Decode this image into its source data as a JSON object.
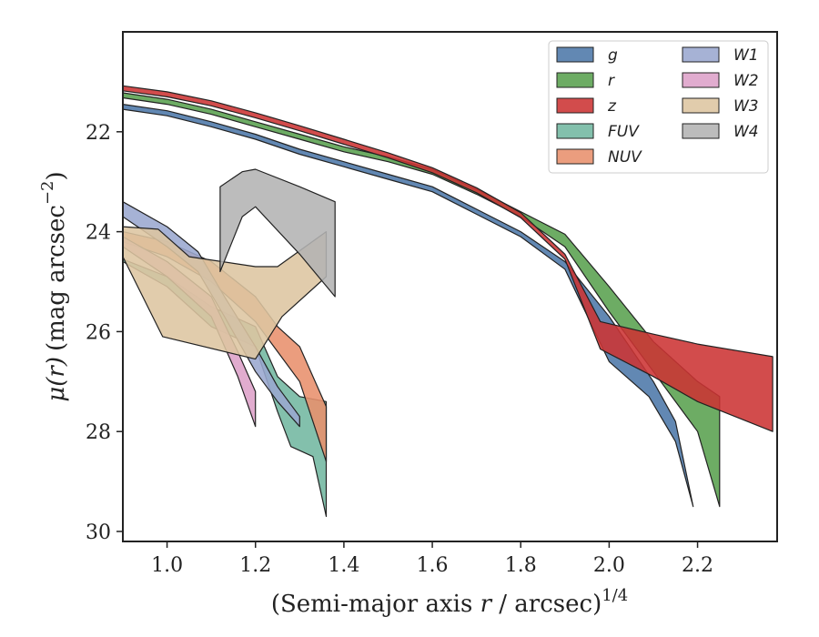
{
  "chart_data": {
    "type": "area",
    "xlabel": "(Semi-major axis r / arcsec)",
    "xlabel_main": "(Semi-major axis ",
    "xlabel_var": "r",
    "xlabel_tail": " / arcsec)",
    "xlabel_sup": "1/4",
    "ylabel_main": "(mag arcsec",
    "ylabel_sup": "−2",
    "ylabel_end": ")",
    "ylabel_var": "μ(r)",
    "xlim": [
      0.9,
      2.38
    ],
    "ylim": [
      30.2,
      20.0
    ],
    "y_inverted": true,
    "x_ticks": [
      1.0,
      1.2,
      1.4,
      1.6,
      1.8,
      2.0,
      2.2
    ],
    "x_tick_labels": [
      "1.0",
      "1.2",
      "1.4",
      "1.6",
      "1.8",
      "2.0",
      "2.2"
    ],
    "y_ticks": [
      22,
      24,
      26,
      28,
      30
    ],
    "y_tick_labels": [
      "22",
      "24",
      "26",
      "28",
      "30"
    ],
    "legend_position": "top-right",
    "legend_columns": 2,
    "series": [
      {
        "name": "g",
        "color": "#4c78a8",
        "upper": [
          [
            0.9,
            21.45
          ],
          [
            1.0,
            21.58
          ],
          [
            1.1,
            21.8
          ],
          [
            1.2,
            22.05
          ],
          [
            1.3,
            22.35
          ],
          [
            1.4,
            22.6
          ],
          [
            1.5,
            22.85
          ],
          [
            1.6,
            23.1
          ],
          [
            1.7,
            23.55
          ],
          [
            1.8,
            24.0
          ],
          [
            1.9,
            24.6
          ],
          [
            2.0,
            25.7
          ],
          [
            2.1,
            27.0
          ],
          [
            2.15,
            27.8
          ],
          [
            2.19,
            29.5
          ]
        ],
        "lower": [
          [
            0.9,
            21.55
          ],
          [
            1.0,
            21.68
          ],
          [
            1.1,
            21.9
          ],
          [
            1.2,
            22.15
          ],
          [
            1.3,
            22.45
          ],
          [
            1.4,
            22.7
          ],
          [
            1.5,
            22.95
          ],
          [
            1.6,
            23.2
          ],
          [
            1.7,
            23.65
          ],
          [
            1.8,
            24.1
          ],
          [
            1.9,
            24.75
          ],
          [
            2.0,
            26.6
          ],
          [
            2.09,
            27.3
          ],
          [
            2.15,
            28.2
          ],
          [
            2.19,
            29.5
          ]
        ]
      },
      {
        "name": "r",
        "color": "#59a14f",
        "upper": [
          [
            0.9,
            21.22
          ],
          [
            1.0,
            21.35
          ],
          [
            1.1,
            21.55
          ],
          [
            1.2,
            21.8
          ],
          [
            1.3,
            22.05
          ],
          [
            1.4,
            22.3
          ],
          [
            1.5,
            22.5
          ],
          [
            1.6,
            22.75
          ],
          [
            1.7,
            23.15
          ],
          [
            1.8,
            23.6
          ],
          [
            1.9,
            24.05
          ],
          [
            2.0,
            25.1
          ],
          [
            2.1,
            26.2
          ],
          [
            2.2,
            27.0
          ],
          [
            2.25,
            27.3
          ]
        ],
        "lower": [
          [
            0.9,
            21.32
          ],
          [
            1.0,
            21.45
          ],
          [
            1.1,
            21.65
          ],
          [
            1.2,
            21.9
          ],
          [
            1.3,
            22.15
          ],
          [
            1.4,
            22.4
          ],
          [
            1.5,
            22.6
          ],
          [
            1.6,
            22.85
          ],
          [
            1.7,
            23.25
          ],
          [
            1.8,
            23.7
          ],
          [
            1.9,
            24.3
          ],
          [
            2.0,
            25.6
          ],
          [
            2.1,
            26.8
          ],
          [
            2.2,
            28.0
          ],
          [
            2.25,
            29.5
          ]
        ]
      },
      {
        "name": "z",
        "color": "#cc3333",
        "upper": [
          [
            0.9,
            21.08
          ],
          [
            1.0,
            21.2
          ],
          [
            1.1,
            21.38
          ],
          [
            1.2,
            21.62
          ],
          [
            1.3,
            21.88
          ],
          [
            1.4,
            22.15
          ],
          [
            1.5,
            22.42
          ],
          [
            1.6,
            22.72
          ],
          [
            1.7,
            23.12
          ],
          [
            1.8,
            23.62
          ],
          [
            1.9,
            24.45
          ],
          [
            1.98,
            25.8
          ],
          [
            2.1,
            26.05
          ],
          [
            2.2,
            26.25
          ],
          [
            2.37,
            26.5
          ]
        ],
        "lower": [
          [
            0.9,
            21.18
          ],
          [
            1.0,
            21.3
          ],
          [
            1.1,
            21.48
          ],
          [
            1.2,
            21.72
          ],
          [
            1.3,
            21.98
          ],
          [
            1.4,
            22.25
          ],
          [
            1.5,
            22.52
          ],
          [
            1.6,
            22.82
          ],
          [
            1.7,
            23.22
          ],
          [
            1.8,
            23.72
          ],
          [
            1.9,
            24.55
          ],
          [
            1.98,
            26.35
          ],
          [
            2.1,
            26.9
          ],
          [
            2.2,
            27.4
          ],
          [
            2.37,
            28.0
          ]
        ]
      },
      {
        "name": "FUV",
        "color": "#72b7a1",
        "upper": [
          [
            0.9,
            24.55
          ],
          [
            1.0,
            24.9
          ],
          [
            1.1,
            25.5
          ],
          [
            1.2,
            25.9
          ],
          [
            1.25,
            26.9
          ],
          [
            1.3,
            27.3
          ],
          [
            1.36,
            27.4
          ]
        ],
        "lower": [
          [
            0.9,
            24.6
          ],
          [
            1.0,
            25.1
          ],
          [
            1.1,
            25.9
          ],
          [
            1.2,
            26.3
          ],
          [
            1.25,
            27.6
          ],
          [
            1.28,
            28.3
          ],
          [
            1.33,
            28.5
          ],
          [
            1.36,
            29.7
          ]
        ]
      },
      {
        "name": "NUV",
        "color": "#e8906c",
        "upper": [
          [
            0.9,
            24.0
          ],
          [
            1.0,
            24.2
          ],
          [
            1.1,
            24.6
          ],
          [
            1.2,
            25.3
          ],
          [
            1.25,
            25.9
          ],
          [
            1.3,
            26.3
          ],
          [
            1.36,
            27.5
          ]
        ],
        "lower": [
          [
            0.9,
            24.2
          ],
          [
            1.0,
            24.5
          ],
          [
            1.1,
            25.0
          ],
          [
            1.2,
            25.8
          ],
          [
            1.25,
            26.4
          ],
          [
            1.3,
            27.0
          ],
          [
            1.36,
            28.6
          ]
        ]
      },
      {
        "name": "W1",
        "color": "#9aa7cf",
        "upper": [
          [
            0.9,
            23.4
          ],
          [
            1.0,
            23.9
          ],
          [
            1.07,
            24.4
          ],
          [
            1.13,
            25.3
          ],
          [
            1.2,
            26.3
          ],
          [
            1.25,
            27.1
          ],
          [
            1.3,
            27.7
          ]
        ],
        "lower": [
          [
            0.9,
            23.7
          ],
          [
            1.0,
            24.3
          ],
          [
            1.07,
            24.8
          ],
          [
            1.13,
            25.7
          ],
          [
            1.2,
            26.8
          ],
          [
            1.25,
            27.4
          ],
          [
            1.3,
            27.9
          ]
        ]
      },
      {
        "name": "W2",
        "color": "#dda0c8",
        "upper": [
          [
            0.9,
            24.1
          ],
          [
            1.0,
            24.6
          ],
          [
            1.1,
            25.3
          ],
          [
            1.16,
            26.4
          ],
          [
            1.2,
            27.2
          ]
        ],
        "lower": [
          [
            0.9,
            24.3
          ],
          [
            1.0,
            24.9
          ],
          [
            1.1,
            25.7
          ],
          [
            1.16,
            26.9
          ],
          [
            1.2,
            27.9
          ]
        ]
      },
      {
        "name": "W3",
        "color": "#ddc5a0",
        "upper": [
          [
            0.9,
            23.9
          ],
          [
            0.98,
            23.95
          ],
          [
            1.05,
            24.5
          ],
          [
            1.2,
            24.7
          ],
          [
            1.25,
            24.7
          ],
          [
            1.36,
            24.0
          ]
        ],
        "lower": [
          [
            0.9,
            24.5
          ],
          [
            0.99,
            26.1
          ],
          [
            1.2,
            26.55
          ],
          [
            1.26,
            25.7
          ],
          [
            1.36,
            24.9
          ]
        ]
      },
      {
        "name": "W4",
        "color": "#b3b3b3",
        "upper": [
          [
            1.12,
            23.1
          ],
          [
            1.17,
            22.8
          ],
          [
            1.2,
            22.75
          ],
          [
            1.3,
            23.1
          ],
          [
            1.38,
            23.4
          ]
        ],
        "lower": [
          [
            1.12,
            24.8
          ],
          [
            1.17,
            23.7
          ],
          [
            1.2,
            23.5
          ],
          [
            1.3,
            24.45
          ],
          [
            1.38,
            25.3
          ]
        ]
      }
    ]
  }
}
